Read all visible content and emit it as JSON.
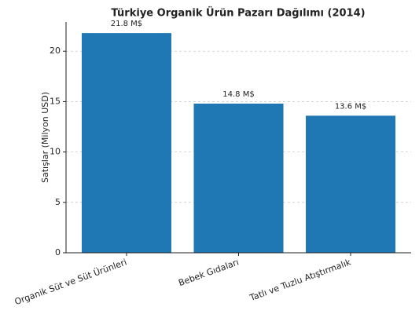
{
  "chart_data": {
    "type": "bar",
    "title": "Türkiye Organik Ürün Pazarı Dağılımı (2014)",
    "y_label": "Satışlar (Milyon USD)",
    "categories": [
      "Organik Süt ve Süt Ürünleri",
      "Bebek Gıdaları",
      "Tatlı ve Tuzlu Atıştırmalık"
    ],
    "values": [
      21.8,
      14.8,
      13.6
    ],
    "value_labels": [
      "21.8 M$",
      "14.8 M$",
      "13.6 M$"
    ],
    "color": "#1f77b4",
    "ylim": [
      0,
      22.9
    ],
    "yticks": [
      0,
      5,
      10,
      15,
      20
    ],
    "grid": true
  }
}
